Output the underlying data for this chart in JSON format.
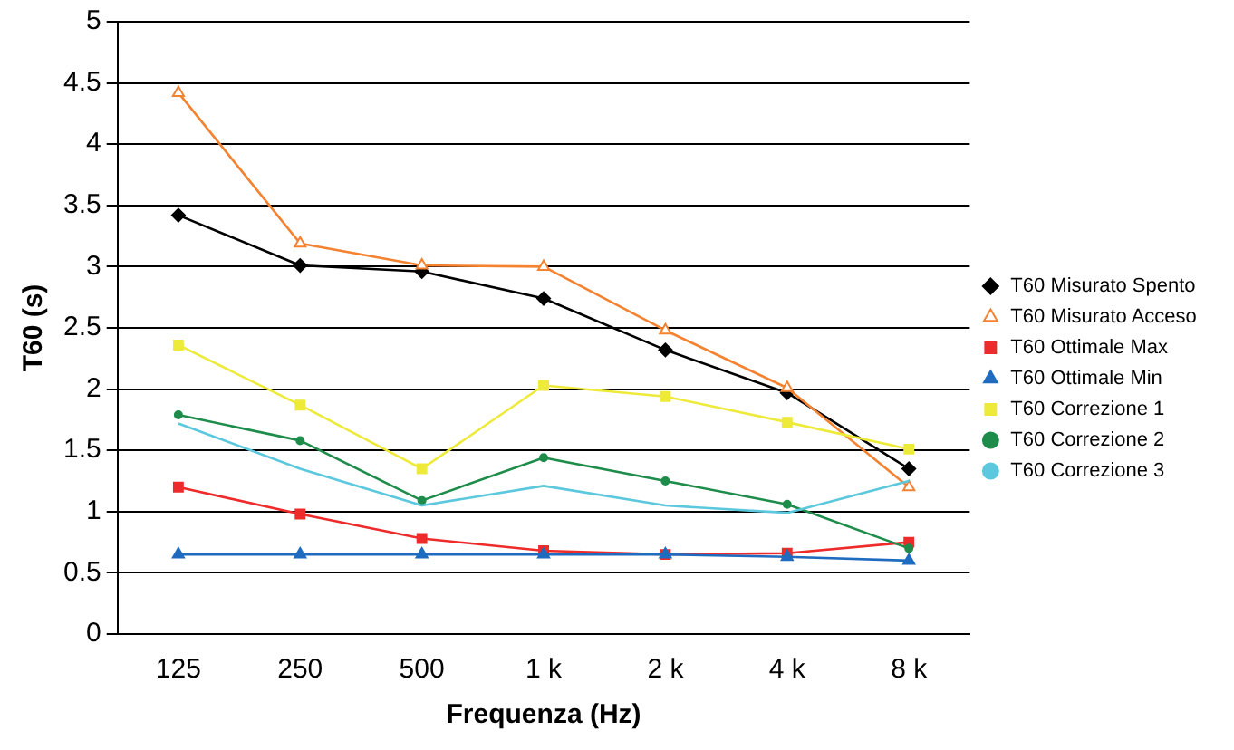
{
  "chart_data": {
    "type": "line",
    "xlabel": "Frequenza (Hz)",
    "ylabel": "T60 (s)",
    "categories": [
      "125",
      "250",
      "500",
      "1 k",
      "2 k",
      "4 k",
      "8 k"
    ],
    "ylim": [
      0,
      5
    ],
    "yticks": [
      0,
      0.5,
      1,
      1.5,
      2,
      2.5,
      3,
      3.5,
      4,
      4.5,
      5
    ],
    "grid": "y",
    "legend": "right",
    "series": [
      {
        "name": "T60 Misurato Spento",
        "color": "#000000",
        "marker": "diamond",
        "values": [
          3.42,
          3.01,
          2.96,
          2.74,
          2.32,
          1.97,
          1.35
        ]
      },
      {
        "name": "T60 Misurato Acceso",
        "color": "#f58230",
        "marker": "triangle",
        "values": [
          4.42,
          3.19,
          3.01,
          3.0,
          2.48,
          2.01,
          1.2
        ]
      },
      {
        "name": "T60 Ottimale Max",
        "color": "#ee2b2b",
        "marker": "square",
        "values": [
          1.2,
          0.98,
          0.78,
          0.68,
          0.65,
          0.66,
          0.75
        ]
      },
      {
        "name": "T60 Ottimale Min",
        "color": "#1f6bc0",
        "marker": "triangle",
        "values": [
          0.65,
          0.65,
          0.65,
          0.65,
          0.65,
          0.63,
          0.6
        ]
      },
      {
        "name": "T60 Correzione 1",
        "color": "#eeea3a",
        "marker": "square",
        "values": [
          2.36,
          1.87,
          1.35,
          2.03,
          1.94,
          1.73,
          1.51
        ]
      },
      {
        "name": "T60 Correzione 2",
        "color": "#1e8c4a",
        "marker": "circle",
        "values": [
          1.79,
          1.58,
          1.09,
          1.44,
          1.25,
          1.06,
          0.7
        ]
      },
      {
        "name": "T60 Correzione 3",
        "color": "#5cc8de",
        "marker": "none",
        "values": [
          1.72,
          1.35,
          1.05,
          1.21,
          1.05,
          0.99,
          1.25
        ]
      }
    ]
  }
}
